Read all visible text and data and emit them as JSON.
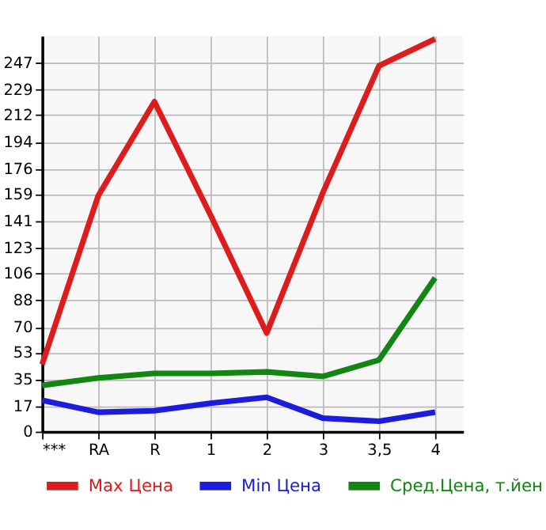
{
  "chart_data": {
    "type": "line",
    "categories": [
      "***",
      "RA",
      "R",
      "1",
      "2",
      "3",
      "3,5",
      "4"
    ],
    "series": [
      {
        "name": "Max Цена",
        "color": "#dd1c1c",
        "values": [
          45,
          158,
          221,
          145,
          66,
          160,
          245,
          263
        ]
      },
      {
        "name": "Min Цена",
        "color": "#1c1cdd",
        "values": [
          21,
          13,
          14,
          19,
          23,
          9,
          7,
          13
        ]
      },
      {
        "name": "Сред.Цена, т.йен",
        "color": "#138513",
        "values": [
          31,
          36,
          39,
          39,
          40,
          37,
          48,
          103
        ]
      }
    ],
    "ylim": [
      0,
      265
    ],
    "yticks": [
      0,
      17,
      35,
      53,
      70,
      88,
      106,
      123,
      141,
      159,
      176,
      194,
      212,
      229,
      247
    ],
    "grid": true,
    "legend": "bottom",
    "marker": "none",
    "line_style": "solid"
  }
}
